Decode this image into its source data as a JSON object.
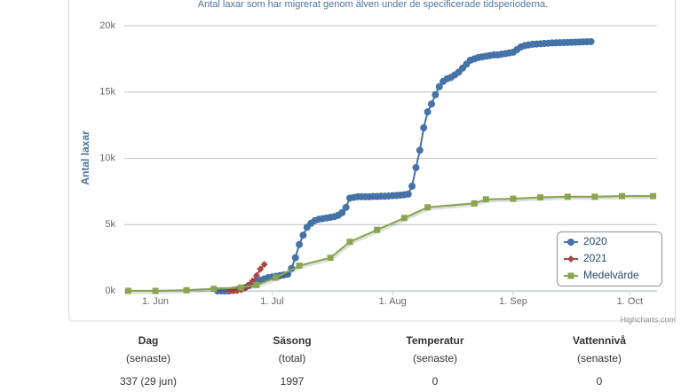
{
  "chart_data": {
    "type": "line",
    "subtitle": "Antal laxar som har migrerat genom älven under de specificerade tidsperioderna.",
    "y_label": "Antal laxar",
    "credit": "Highcharts.com",
    "xlim": [
      "05-24",
      "10-08"
    ],
    "xticks": [
      {
        "value": "06-01",
        "label": "1. Jun"
      },
      {
        "value": "07-01",
        "label": "1. Jul"
      },
      {
        "value": "08-01",
        "label": "1. Aug"
      },
      {
        "value": "09-01",
        "label": "1. Sep"
      },
      {
        "value": "10-01",
        "label": "1. Oct"
      }
    ],
    "ylim": [
      0,
      20000
    ],
    "yticks": [
      {
        "value": 0,
        "label": "0k"
      },
      {
        "value": 5000,
        "label": "5k"
      },
      {
        "value": 10000,
        "label": "10k"
      },
      {
        "value": 15000,
        "label": "15k"
      },
      {
        "value": 20000,
        "label": "20k"
      }
    ],
    "grid": true,
    "legend": "bottom-right",
    "series": [
      {
        "name": "2020",
        "color": "#4572A7",
        "marker": "circle",
        "x": [
          "06-17",
          "06-18",
          "06-19",
          "06-20",
          "06-21",
          "06-22",
          "06-23",
          "06-24",
          "06-25",
          "06-26",
          "06-27",
          "06-28",
          "06-29",
          "06-30",
          "07-01",
          "07-02",
          "07-03",
          "07-04",
          "07-05",
          "07-06",
          "07-07",
          "07-08",
          "07-09",
          "07-10",
          "07-11",
          "07-12",
          "07-13",
          "07-14",
          "07-15",
          "07-16",
          "07-17",
          "07-18",
          "07-19",
          "07-20",
          "07-21",
          "07-22",
          "07-23",
          "07-24",
          "07-25",
          "07-26",
          "07-27",
          "07-28",
          "07-29",
          "07-30",
          "07-31",
          "08-01",
          "08-02",
          "08-03",
          "08-04",
          "08-05",
          "08-06",
          "08-07",
          "08-08",
          "08-09",
          "08-10",
          "08-11",
          "08-12",
          "08-13",
          "08-14",
          "08-15",
          "08-16",
          "08-17",
          "08-18",
          "08-19",
          "08-20",
          "08-21",
          "08-22",
          "08-23",
          "08-24",
          "08-25",
          "08-26",
          "08-27",
          "08-28",
          "08-29",
          "08-30",
          "08-31",
          "09-01",
          "09-02",
          "09-03",
          "09-04",
          "09-05",
          "09-06",
          "09-07",
          "09-08",
          "09-09",
          "09-10",
          "09-11",
          "09-12",
          "09-13",
          "09-14",
          "09-15",
          "09-16",
          "09-17",
          "09-18",
          "09-19",
          "09-20",
          "09-21"
        ],
        "values": [
          0,
          0,
          0,
          0,
          50,
          100,
          150,
          250,
          400,
          550,
          700,
          800,
          900,
          1000,
          1050,
          1100,
          1150,
          1200,
          1250,
          1700,
          2500,
          3500,
          4200,
          4800,
          5100,
          5300,
          5400,
          5450,
          5500,
          5550,
          5600,
          5700,
          5900,
          6300,
          7000,
          7050,
          7100,
          7100,
          7100,
          7100,
          7120,
          7120,
          7140,
          7140,
          7160,
          7180,
          7200,
          7220,
          7250,
          7300,
          7900,
          9300,
          10600,
          12300,
          13500,
          14100,
          14800,
          15400,
          15800,
          16000,
          16100,
          16300,
          16500,
          16800,
          17100,
          17400,
          17500,
          17600,
          17650,
          17700,
          17750,
          17800,
          17800,
          17850,
          17900,
          17950,
          18000,
          18200,
          18400,
          18500,
          18550,
          18600,
          18620,
          18640,
          18660,
          18680,
          18700,
          18710,
          18720,
          18730,
          18740,
          18750,
          18760,
          18770,
          18780,
          18790,
          18800
        ]
      },
      {
        "name": "2021",
        "color": "#AA4643",
        "marker": "diamond",
        "x": [
          "06-20",
          "06-21",
          "06-22",
          "06-23",
          "06-24",
          "06-25",
          "06-26",
          "06-27",
          "06-28",
          "06-29"
        ],
        "values": [
          0,
          0,
          20,
          80,
          200,
          450,
          750,
          1150,
          1650,
          2000
        ]
      },
      {
        "name": "Medelvärde",
        "color": "#89A54E",
        "marker": "square",
        "x": [
          "05-25",
          "06-01",
          "06-09",
          "06-16",
          "06-23",
          "06-27",
          "07-02",
          "07-08",
          "07-16",
          "07-21",
          "07-28",
          "08-04",
          "08-10",
          "08-22",
          "08-25",
          "09-01",
          "09-08",
          "09-15",
          "09-22",
          "09-29",
          "10-07"
        ],
        "values": [
          0,
          0,
          50,
          150,
          250,
          450,
          1000,
          1900,
          2500,
          3700,
          4600,
          5500,
          6300,
          6600,
          6900,
          6950,
          7050,
          7100,
          7100,
          7150,
          7150
        ]
      }
    ]
  },
  "stats": [
    {
      "label": "Dag",
      "sub": "(senaste)",
      "value": "337 (29 jun)"
    },
    {
      "label": "Säsong",
      "sub": "(total)",
      "value": 1997
    },
    {
      "label": "Temperatur",
      "sub": "(senaste)",
      "value": 0
    },
    {
      "label": "Vattennivå",
      "sub": "(senaste)",
      "value": 0
    }
  ]
}
